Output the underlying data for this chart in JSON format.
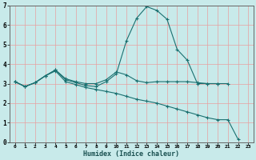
{
  "xlabel": "Humidex (Indice chaleur)",
  "background_color": "#c8eaea",
  "grid_color_red": "#e8a0a0",
  "grid_color_teal": "#a8d4d4",
  "line_color": "#1a7070",
  "xlim": [
    -0.5,
    23.5
  ],
  "ylim": [
    0,
    7
  ],
  "xticks": [
    0,
    1,
    2,
    3,
    4,
    5,
    6,
    7,
    8,
    9,
    10,
    11,
    12,
    13,
    14,
    15,
    16,
    17,
    18,
    19,
    20,
    21,
    22,
    23
  ],
  "yticks": [
    0,
    1,
    2,
    3,
    4,
    5,
    6,
    7
  ],
  "series": [
    {
      "x": [
        0,
        1,
        2,
        3,
        4,
        5,
        6,
        7,
        8,
        9,
        10,
        11,
        12,
        13,
        14,
        15,
        16,
        17,
        18,
        19,
        20,
        21
      ],
      "y": [
        3.1,
        2.85,
        3.05,
        3.4,
        3.7,
        3.2,
        3.05,
        2.9,
        2.85,
        3.1,
        3.5,
        5.2,
        6.35,
        6.95,
        6.75,
        6.3,
        4.75,
        4.2,
        3.0,
        3.0,
        3.0,
        3.0
      ]
    },
    {
      "x": [
        0,
        1,
        2,
        3,
        4,
        5,
        6,
        7,
        8,
        9,
        10,
        11,
        12,
        13,
        14,
        15,
        16,
        17,
        18,
        19,
        20
      ],
      "y": [
        3.1,
        2.85,
        3.05,
        3.4,
        3.7,
        3.25,
        3.1,
        3.0,
        3.0,
        3.2,
        3.6,
        3.45,
        3.15,
        3.05,
        3.1,
        3.1,
        3.1,
        3.1,
        3.05,
        3.0,
        3.0
      ]
    },
    {
      "x": [
        0,
        1,
        2,
        3,
        4,
        5,
        6,
        7,
        8,
        9,
        10,
        11,
        12,
        13,
        14,
        15,
        16,
        17,
        18,
        19,
        20,
        21,
        22
      ],
      "y": [
        3.1,
        2.85,
        3.05,
        3.4,
        3.65,
        3.1,
        2.95,
        2.8,
        2.7,
        2.6,
        2.5,
        2.35,
        2.2,
        2.1,
        2.0,
        1.85,
        1.7,
        1.55,
        1.4,
        1.25,
        1.15,
        1.15,
        0.15
      ]
    }
  ]
}
